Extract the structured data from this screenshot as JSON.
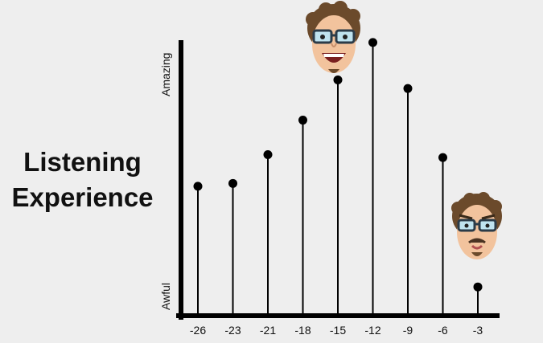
{
  "chart_data": {
    "type": "stem",
    "title": "",
    "ylabel_lines": [
      "Listening",
      "Experience"
    ],
    "xlabel": "",
    "x": [
      -26,
      -23,
      -21,
      -18,
      -15,
      -12,
      -9,
      -6,
      -3
    ],
    "tick_labels": [
      "-26",
      "-23",
      "-21",
      "-18",
      "-15",
      "-12",
      "-9",
      "-6",
      "-3"
    ],
    "values": [
      0.45,
      0.46,
      0.56,
      0.68,
      0.82,
      0.95,
      0.79,
      0.55,
      0.1
    ],
    "ylim": [
      0,
      1
    ],
    "y_axis_labels": {
      "min": "Awful",
      "max": "Amazing"
    },
    "grid": false,
    "colors": {
      "stem": "#000000",
      "background": "#eeeeee"
    },
    "faces": [
      {
        "icon": "happy-face-icon",
        "near_x": -12,
        "mood": "happy"
      },
      {
        "icon": "sad-face-icon",
        "near_x": -3,
        "mood": "sad"
      }
    ]
  }
}
